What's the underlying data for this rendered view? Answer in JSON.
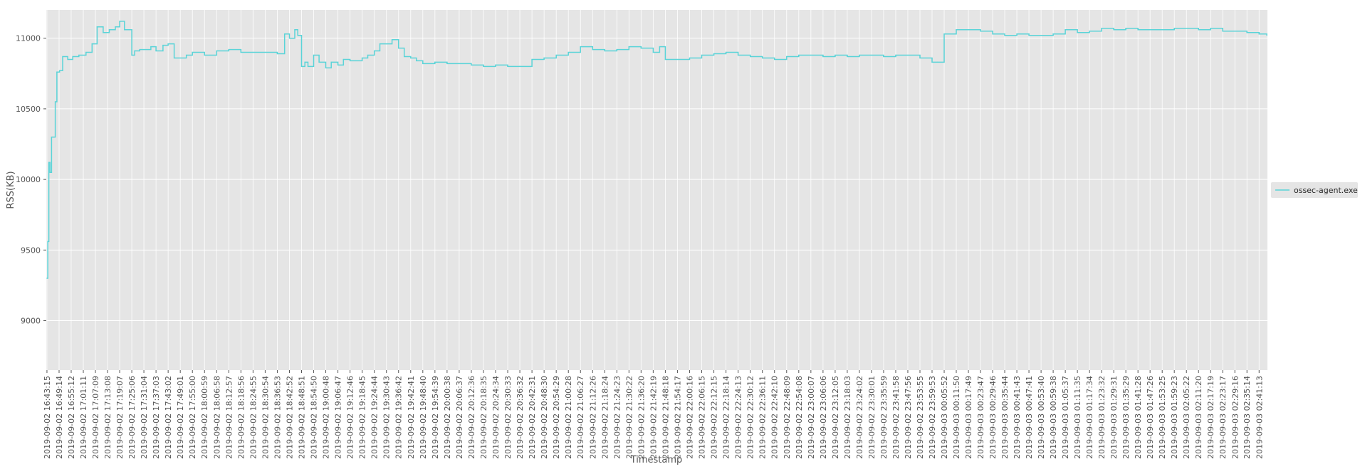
{
  "chart_data": {
    "type": "line",
    "title": "",
    "xlabel": "Timestamp",
    "ylabel": "RSS(KB)",
    "ylim": [
      8650,
      11200
    ],
    "yticks": [
      9000,
      9500,
      10000,
      10500,
      11000
    ],
    "grid": true,
    "legend_position": "right",
    "colors": {
      "background": "#e5e5e5",
      "grid": "#ffffff",
      "series": "#5ad4d8"
    },
    "x_tick_labels": [
      "2019-09-02 16:43:15",
      "2019-09-02 16:49:14",
      "2019-09-02 16:55:12",
      "2019-09-02 17:01:11",
      "2019-09-02 17:07:09",
      "2019-09-02 17:13:08",
      "2019-09-02 17:19:07",
      "2019-09-02 17:25:06",
      "2019-09-02 17:31:04",
      "2019-09-02 17:37:03",
      "2019-09-02 17:43:02",
      "2019-09-02 17:49:01",
      "2019-09-02 17:55:00",
      "2019-09-02 18:00:59",
      "2019-09-02 18:06:58",
      "2019-09-02 18:12:57",
      "2019-09-02 18:18:56",
      "2019-09-02 18:24:55",
      "2019-09-02 18:30:54",
      "2019-09-02 18:36:53",
      "2019-09-02 18:42:52",
      "2019-09-02 18:48:51",
      "2019-09-02 18:54:50",
      "2019-09-02 19:00:48",
      "2019-09-02 19:06:47",
      "2019-09-02 19:12:46",
      "2019-09-02 19:18:45",
      "2019-09-02 19:24:44",
      "2019-09-02 19:30:43",
      "2019-09-02 19:36:42",
      "2019-09-02 19:42:41",
      "2019-09-02 19:48:40",
      "2019-09-02 19:54:39",
      "2019-09-02 20:00:38",
      "2019-09-02 20:06:37",
      "2019-09-02 20:12:36",
      "2019-09-02 20:18:35",
      "2019-09-02 20:24:34",
      "2019-09-02 20:30:33",
      "2019-09-02 20:36:32",
      "2019-09-02 20:42:31",
      "2019-09-02 20:48:30",
      "2019-09-02 20:54:29",
      "2019-09-02 21:00:28",
      "2019-09-02 21:06:27",
      "2019-09-02 21:12:26",
      "2019-09-02 21:18:24",
      "2019-09-02 21:24:23",
      "2019-09-02 21:30:22",
      "2019-09-02 21:36:20",
      "2019-09-02 21:42:19",
      "2019-09-02 21:48:18",
      "2019-09-02 21:54:17",
      "2019-09-02 22:00:16",
      "2019-09-02 22:06:15",
      "2019-09-02 22:12:15",
      "2019-09-02 22:18:14",
      "2019-09-02 22:24:13",
      "2019-09-02 22:30:12",
      "2019-09-02 22:36:11",
      "2019-09-02 22:42:10",
      "2019-09-02 22:48:09",
      "2019-09-02 22:54:08",
      "2019-09-02 23:00:07",
      "2019-09-02 23:06:06",
      "2019-09-02 23:12:05",
      "2019-09-02 23:18:03",
      "2019-09-02 23:24:02",
      "2019-09-02 23:30:01",
      "2019-09-02 23:35:59",
      "2019-09-02 23:41:58",
      "2019-09-02 23:47:56",
      "2019-09-02 23:53:55",
      "2019-09-02 23:59:53",
      "2019-09-03 00:05:52",
      "2019-09-03 00:11:50",
      "2019-09-03 00:17:49",
      "2019-09-03 00:23:47",
      "2019-09-03 00:29:46",
      "2019-09-03 00:35:44",
      "2019-09-03 00:41:43",
      "2019-09-03 00:47:41",
      "2019-09-03 00:53:40",
      "2019-09-03 00:59:38",
      "2019-09-03 01:05:37",
      "2019-09-03 01:11:35",
      "2019-09-03 01:17:34",
      "2019-09-03 01:23:32",
      "2019-09-03 01:29:31",
      "2019-09-03 01:35:29",
      "2019-09-03 01:41:28",
      "2019-09-03 01:47:26",
      "2019-09-03 01:53:25",
      "2019-09-03 01:59:23",
      "2019-09-03 02:05:22",
      "2019-09-03 02:11:20",
      "2019-09-03 02:17:19",
      "2019-09-03 02:23:17",
      "2019-09-03 02:29:16",
      "2019-09-03 02:35:14",
      "2019-09-03 02:41:13"
    ],
    "series": [
      {
        "name": "ossec-agent.exe",
        "x": [
          "2019-09-02 16:43:15",
          "2019-09-02 16:43:40",
          "2019-09-02 16:44:10",
          "2019-09-02 16:44:45",
          "2019-09-02 16:45:30",
          "2019-09-02 16:46:30",
          "2019-09-02 16:47:20",
          "2019-09-02 16:48:10",
          "2019-09-02 16:49:30",
          "2019-09-02 16:51:00",
          "2019-09-02 16:53:30",
          "2019-09-02 16:56:00",
          "2019-09-02 16:59:00",
          "2019-09-02 17:02:30",
          "2019-09-02 17:05:30",
          "2019-09-02 17:08:00",
          "2019-09-02 17:11:00",
          "2019-09-02 17:14:00",
          "2019-09-02 17:17:00",
          "2019-09-02 17:19:07",
          "2019-09-02 17:21:30",
          "2019-09-02 17:25:06",
          "2019-09-02 17:26:30",
          "2019-09-02 17:29:00",
          "2019-09-02 17:31:04",
          "2019-09-02 17:34:30",
          "2019-09-02 17:37:03",
          "2019-09-02 17:40:30",
          "2019-09-02 17:43:02",
          "2019-09-02 17:46:00",
          "2019-09-02 17:49:01",
          "2019-09-02 17:52:00",
          "2019-09-02 17:55:00",
          "2019-09-02 18:00:59",
          "2019-09-02 18:03:30",
          "2019-09-02 18:06:58",
          "2019-09-02 18:12:57",
          "2019-09-02 18:18:56",
          "2019-09-02 18:24:55",
          "2019-09-02 18:30:54",
          "2019-09-02 18:36:53",
          "2019-09-02 18:40:30",
          "2019-09-02 18:42:52",
          "2019-09-02 18:45:30",
          "2019-09-02 18:47:00",
          "2019-09-02 18:48:51",
          "2019-09-02 18:50:30",
          "2019-09-02 18:52:00",
          "2019-09-02 18:54:50",
          "2019-09-02 18:57:30",
          "2019-09-02 19:00:48",
          "2019-09-02 19:03:30",
          "2019-09-02 19:06:47",
          "2019-09-02 19:09:30",
          "2019-09-02 19:12:46",
          "2019-09-02 19:15:30",
          "2019-09-02 19:18:45",
          "2019-09-02 19:21:30",
          "2019-09-02 19:24:44",
          "2019-09-02 19:27:30",
          "2019-09-02 19:30:43",
          "2019-09-02 19:33:30",
          "2019-09-02 19:36:42",
          "2019-09-02 19:39:30",
          "2019-09-02 19:42:41",
          "2019-09-02 19:45:30",
          "2019-09-02 19:48:40",
          "2019-09-02 19:54:39",
          "2019-09-02 20:00:38",
          "2019-09-02 20:06:37",
          "2019-09-02 20:12:36",
          "2019-09-02 20:18:35",
          "2019-09-02 20:24:34",
          "2019-09-02 20:30:33",
          "2019-09-02 20:36:32",
          "2019-09-02 20:42:31",
          "2019-09-02 20:48:30",
          "2019-09-02 20:54:29",
          "2019-09-02 21:00:28",
          "2019-09-02 21:06:27",
          "2019-09-02 21:12:26",
          "2019-09-02 21:18:24",
          "2019-09-02 21:24:23",
          "2019-09-02 21:30:22",
          "2019-09-02 21:36:20",
          "2019-09-02 21:42:19",
          "2019-09-02 21:45:30",
          "2019-09-02 21:48:18",
          "2019-09-02 21:54:17",
          "2019-09-02 22:00:16",
          "2019-09-02 22:06:15",
          "2019-09-02 22:12:15",
          "2019-09-02 22:18:14",
          "2019-09-02 22:24:13",
          "2019-09-02 22:30:12",
          "2019-09-02 22:36:11",
          "2019-09-02 22:42:10",
          "2019-09-02 22:48:09",
          "2019-09-02 22:54:08",
          "2019-09-02 23:00:07",
          "2019-09-02 23:06:06",
          "2019-09-02 23:12:05",
          "2019-09-02 23:18:03",
          "2019-09-02 23:24:02",
          "2019-09-02 23:30:01",
          "2019-09-02 23:35:59",
          "2019-09-02 23:41:58",
          "2019-09-02 23:47:56",
          "2019-09-02 23:53:55",
          "2019-09-02 23:59:53",
          "2019-09-03 00:02:30",
          "2019-09-03 00:05:52",
          "2019-09-03 00:11:50",
          "2019-09-03 00:17:49",
          "2019-09-03 00:23:47",
          "2019-09-03 00:29:46",
          "2019-09-03 00:35:44",
          "2019-09-03 00:41:43",
          "2019-09-03 00:47:41",
          "2019-09-03 00:53:40",
          "2019-09-03 00:59:38",
          "2019-09-03 01:05:37",
          "2019-09-03 01:11:35",
          "2019-09-03 01:17:34",
          "2019-09-03 01:23:32",
          "2019-09-03 01:29:31",
          "2019-09-03 01:35:29",
          "2019-09-03 01:41:28",
          "2019-09-03 01:47:26",
          "2019-09-03 01:53:25",
          "2019-09-03 01:59:23",
          "2019-09-03 02:05:22",
          "2019-09-03 02:11:20",
          "2019-09-03 02:17:19",
          "2019-09-03 02:23:17",
          "2019-09-03 02:29:16",
          "2019-09-03 02:35:14",
          "2019-09-03 02:41:13",
          "2019-09-03 02:45:00"
        ],
        "values": [
          9300,
          9560,
          10120,
          10050,
          10300,
          10300,
          10550,
          10760,
          10770,
          10870,
          10850,
          10870,
          10880,
          10900,
          10960,
          11080,
          11040,
          11060,
          11080,
          11120,
          11060,
          10880,
          10910,
          10920,
          10920,
          10940,
          10910,
          10950,
          10960,
          10860,
          10860,
          10880,
          10900,
          10880,
          10880,
          10910,
          10920,
          10900,
          10900,
          10900,
          10890,
          11030,
          11000,
          11060,
          11020,
          10800,
          10830,
          10800,
          10880,
          10830,
          10790,
          10830,
          10810,
          10850,
          10840,
          10840,
          10860,
          10880,
          10910,
          10960,
          10960,
          10990,
          10930,
          10870,
          10860,
          10840,
          10820,
          10830,
          10820,
          10820,
          10810,
          10800,
          10810,
          10800,
          10800,
          10850,
          10860,
          10880,
          10900,
          10940,
          10920,
          10910,
          10920,
          10940,
          10930,
          10900,
          10940,
          10850,
          10850,
          10860,
          10880,
          10890,
          10900,
          10880,
          10870,
          10860,
          10850,
          10870,
          10880,
          10880,
          10870,
          10880,
          10870,
          10880,
          10880,
          10870,
          10880,
          10880,
          10860,
          10830,
          10830,
          11030,
          11060,
          11060,
          11050,
          11030,
          11020,
          11030,
          11020,
          11020,
          11030,
          11060,
          11040,
          11050,
          11070,
          11060,
          11070,
          11060,
          11060,
          11060,
          11070,
          11070,
          11060,
          11070,
          11050,
          11050,
          11040,
          11030,
          11020
        ]
      }
    ]
  }
}
